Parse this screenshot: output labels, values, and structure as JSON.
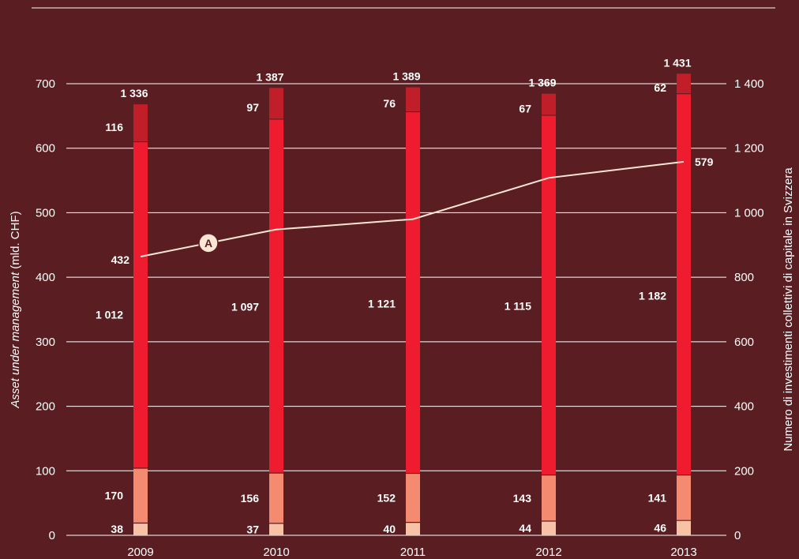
{
  "chart_data": {
    "type": "bar",
    "stacked": true,
    "categories": [
      "2009",
      "2010",
      "2011",
      "2012",
      "2013"
    ],
    "ylabel_left": {
      "italic": "Asset under management",
      "normal": " (mld. CHF)"
    },
    "ylabel_right": "Numero di investimenti collettivi di capitale in Svizzera",
    "ylim_left": [
      0,
      700
    ],
    "yticks_left": [
      "0",
      "100",
      "200",
      "300",
      "400",
      "500",
      "600",
      "700"
    ],
    "ylim_right": [
      0,
      1400
    ],
    "yticks_right": [
      "0",
      "200",
      "400",
      "600",
      "800",
      "1 000",
      "1 200",
      "1 400"
    ],
    "grid": true,
    "series": [
      {
        "values": [
          38,
          37,
          40,
          44,
          46
        ],
        "color": "#f7c2a6"
      },
      {
        "values": [
          170,
          156,
          152,
          143,
          141
        ],
        "color": "#f48b71"
      },
      {
        "values": [
          1012,
          1097,
          1121,
          1115,
          1182
        ],
        "color": "#ee1c2e"
      },
      {
        "values": [
          116,
          97,
          76,
          67,
          62
        ],
        "color": "#c01f2a"
      }
    ],
    "totals": [
      1336,
      1387,
      1389,
      1369,
      1431
    ],
    "total_labels": [
      "1 336",
      "1 387",
      "1 389",
      "1 369",
      "1 431"
    ],
    "series_labels": [
      [
        "38",
        "37",
        "40",
        "44",
        "46"
      ],
      [
        "170",
        "156",
        "152",
        "143",
        "141"
      ],
      [
        "1 012",
        "1 097",
        "1 121",
        "1 115",
        "1 182"
      ],
      [
        "116",
        "97",
        "76",
        "67",
        "62"
      ]
    ],
    "line_series": {
      "axis": "left",
      "marker": "A",
      "values": [
        432,
        474,
        490,
        554,
        579
      ],
      "labels": [
        "432",
        "",
        "",
        "",
        "579"
      ],
      "color": "#fbe6d6"
    }
  }
}
